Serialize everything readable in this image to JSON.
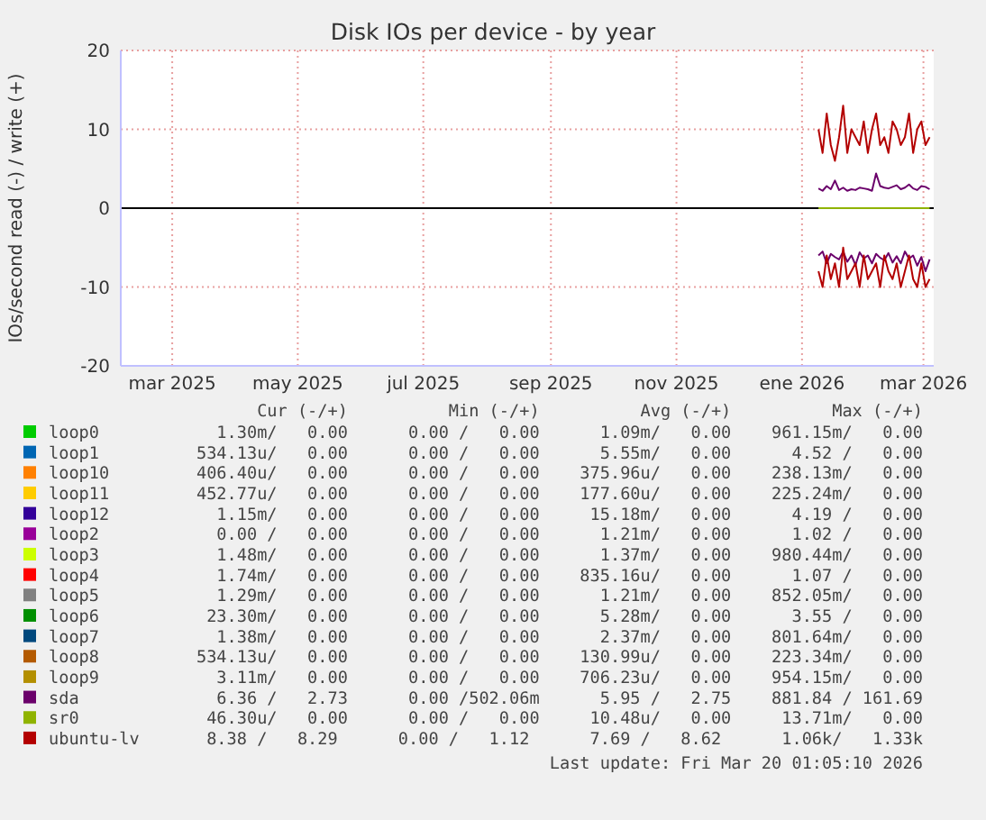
{
  "chart_data": {
    "type": "line",
    "title": "Disk IOs per device - by year",
    "ylabel": "IOs/second read (-) / write (+)",
    "xlim": [
      "2025-02-04",
      "2026-03-06"
    ],
    "ylim": [
      -20,
      20
    ],
    "yticks": [
      -20,
      -10,
      0,
      10,
      20
    ],
    "xticks": [
      {
        "value": "2025-03-01",
        "label": "mar 2025"
      },
      {
        "value": "2025-05-01",
        "label": "may 2025"
      },
      {
        "value": "2025-07-01",
        "label": "jul 2025"
      },
      {
        "value": "2025-09-01",
        "label": "sep 2025"
      },
      {
        "value": "2025-11-01",
        "label": "nov 2025"
      },
      {
        "value": "2026-01-01",
        "label": "ene 2026"
      },
      {
        "value": "2026-03-01",
        "label": "mar 2026"
      }
    ],
    "grid": true,
    "legend": "bottom",
    "line_style": "solid",
    "marker": "none",
    "ref_lines": [
      {
        "axis": "y",
        "value": 0,
        "color": "#000000"
      }
    ],
    "x": [
      "2026-01-09",
      "2026-01-11",
      "2026-01-13",
      "2026-01-15",
      "2026-01-17",
      "2026-01-19",
      "2026-01-21",
      "2026-01-23",
      "2026-01-25",
      "2026-01-27",
      "2026-01-29",
      "2026-01-31",
      "2026-02-02",
      "2026-02-04",
      "2026-02-06",
      "2026-02-08",
      "2026-02-10",
      "2026-02-12",
      "2026-02-14",
      "2026-02-16",
      "2026-02-18",
      "2026-02-20",
      "2026-02-22",
      "2026-02-24",
      "2026-02-26",
      "2026-02-28",
      "2026-03-02",
      "2026-03-04"
    ],
    "series": [
      {
        "name": "loop0",
        "color": "#00cc00",
        "values": [
          null,
          null,
          null,
          null,
          null,
          null,
          null,
          null,
          null,
          null,
          null,
          null,
          null,
          null,
          null,
          null,
          null,
          null,
          null,
          null,
          null,
          null,
          null,
          null,
          null,
          null,
          null,
          null
        ]
      },
      {
        "name": "loop1",
        "color": "#0066b3",
        "values": [
          null,
          null,
          null,
          null,
          null,
          null,
          null,
          null,
          null,
          null,
          null,
          null,
          null,
          null,
          null,
          null,
          null,
          null,
          null,
          null,
          null,
          null,
          null,
          null,
          null,
          null,
          null,
          null
        ]
      },
      {
        "name": "loop10",
        "color": "#ff8000",
        "values": [
          null,
          null,
          null,
          null,
          null,
          null,
          null,
          null,
          null,
          null,
          null,
          null,
          null,
          null,
          null,
          null,
          null,
          null,
          null,
          null,
          null,
          null,
          null,
          null,
          null,
          null,
          null,
          null
        ]
      },
      {
        "name": "loop11",
        "color": "#ffcc00",
        "values": [
          null,
          null,
          null,
          null,
          null,
          null,
          null,
          null,
          null,
          null,
          null,
          null,
          null,
          null,
          null,
          null,
          null,
          null,
          null,
          null,
          null,
          null,
          null,
          null,
          null,
          null,
          null,
          null
        ]
      },
      {
        "name": "loop12",
        "color": "#330099",
        "values": [
          null,
          null,
          null,
          null,
          null,
          null,
          null,
          null,
          null,
          null,
          null,
          null,
          null,
          null,
          null,
          null,
          null,
          null,
          null,
          null,
          null,
          null,
          null,
          null,
          null,
          null,
          null,
          null
        ]
      },
      {
        "name": "loop2",
        "color": "#990099",
        "values": [
          null,
          null,
          null,
          null,
          null,
          null,
          null,
          null,
          null,
          null,
          null,
          null,
          null,
          null,
          null,
          null,
          null,
          null,
          null,
          null,
          null,
          null,
          null,
          null,
          null,
          null,
          null,
          null
        ]
      },
      {
        "name": "loop3",
        "color": "#ccff00",
        "values": [
          null,
          null,
          null,
          null,
          null,
          null,
          null,
          null,
          null,
          null,
          null,
          null,
          null,
          null,
          null,
          null,
          null,
          null,
          null,
          null,
          null,
          null,
          null,
          null,
          null,
          null,
          null,
          null
        ]
      },
      {
        "name": "loop4",
        "color": "#ff0000",
        "values": [
          null,
          null,
          null,
          null,
          null,
          null,
          null,
          null,
          null,
          null,
          null,
          null,
          null,
          null,
          null,
          null,
          null,
          null,
          null,
          null,
          null,
          null,
          null,
          null,
          null,
          null,
          null,
          null
        ]
      },
      {
        "name": "loop5",
        "color": "#808080",
        "values": [
          null,
          null,
          null,
          null,
          null,
          null,
          null,
          null,
          null,
          null,
          null,
          null,
          null,
          null,
          null,
          null,
          null,
          null,
          null,
          null,
          null,
          null,
          null,
          null,
          null,
          null,
          null,
          null
        ]
      },
      {
        "name": "loop6",
        "color": "#008f00",
        "values": [
          null,
          null,
          null,
          null,
          null,
          null,
          null,
          null,
          null,
          null,
          null,
          null,
          null,
          null,
          null,
          null,
          null,
          null,
          null,
          null,
          null,
          null,
          null,
          null,
          null,
          null,
          null,
          null
        ]
      },
      {
        "name": "loop7",
        "color": "#00487d",
        "values": [
          null,
          null,
          null,
          null,
          null,
          null,
          null,
          null,
          null,
          null,
          null,
          null,
          null,
          null,
          null,
          null,
          null,
          null,
          null,
          null,
          null,
          null,
          null,
          null,
          null,
          null,
          null,
          null
        ]
      },
      {
        "name": "loop8",
        "color": "#b35a00",
        "values": [
          null,
          null,
          null,
          null,
          null,
          null,
          null,
          null,
          null,
          null,
          null,
          null,
          null,
          null,
          null,
          null,
          null,
          null,
          null,
          null,
          null,
          null,
          null,
          null,
          null,
          null,
          null,
          null
        ]
      },
      {
        "name": "loop9",
        "color": "#b38f00",
        "values": [
          null,
          null,
          null,
          null,
          null,
          null,
          null,
          null,
          null,
          null,
          null,
          null,
          null,
          null,
          null,
          null,
          null,
          null,
          null,
          null,
          null,
          null,
          null,
          null,
          null,
          null,
          null,
          null
        ]
      },
      {
        "name": "sda",
        "color": "#6b006b",
        "values": [
          2.5,
          2.2,
          2.8,
          2.4,
          3.5,
          2.3,
          2.6,
          2.2,
          2.4,
          2.3,
          2.6,
          2.5,
          2.4,
          2.2,
          4.4,
          2.8,
          2.6,
          2.5,
          2.7,
          2.9,
          2.4,
          2.6,
          3.0,
          2.5,
          2.3,
          2.8,
          2.7,
          2.4
        ]
      },
      {
        "name": "sr0",
        "color": "#8fb300",
        "values": [
          0,
          0,
          0,
          0,
          0,
          0,
          0,
          0,
          0,
          0,
          0,
          0,
          0,
          0,
          0,
          0,
          0,
          0,
          0,
          0,
          0,
          0,
          0,
          0,
          0,
          0,
          0,
          0
        ]
      },
      {
        "name": "ubuntu-lv",
        "color": "#b30000",
        "values": [
          10,
          7,
          12,
          8,
          6,
          9,
          13,
          7,
          10,
          9,
          8,
          11,
          7,
          10,
          12,
          8,
          9,
          7,
          11,
          10,
          8,
          9,
          12,
          7,
          10,
          11,
          8,
          9
        ]
      },
      {
        "color": "#6b006b",
        "values": [
          -6,
          -5.5,
          -7,
          -5.8,
          -6.2,
          -6.5,
          -5.5,
          -6.8,
          -6,
          -7.2,
          -5.6,
          -6.4,
          -6,
          -7,
          -5.8,
          -6.3,
          -6.6,
          -5.7,
          -6.9,
          -6.1,
          -7,
          -5.5,
          -6.4,
          -6,
          -7.3,
          -6.2,
          -8,
          -6.5
        ]
      },
      {
        "color": "#b30000",
        "values": [
          -8,
          -10,
          -6,
          -9,
          -7,
          -10,
          -5,
          -9,
          -8,
          -7,
          -10,
          -6,
          -9,
          -8,
          -7,
          -10,
          -6,
          -8,
          -9,
          -7,
          -10,
          -8,
          -6,
          -9,
          -10,
          -7,
          -10,
          -9
        ]
      }
    ],
    "annotations": [
      "       Cur (-/+)          Min (-/+)          Avg (-/+)          Max (-/+)",
      "   1.30m/   0.00      0.00 /   0.00      1.09m/   0.00    961.15m/   0.00",
      " 534.13u/   0.00      0.00 /   0.00      5.55m/   0.00      4.52 /   0.00",
      " 406.40u/   0.00      0.00 /   0.00    375.96u/   0.00    238.13m/   0.00",
      " 452.77u/   0.00      0.00 /   0.00    177.60u/   0.00    225.24m/   0.00",
      "   1.15m/   0.00      0.00 /   0.00     15.18m/   0.00      4.19 /   0.00",
      "   0.00 /   0.00      0.00 /   0.00      1.21m/   0.00      1.02 /   0.00",
      "   1.48m/   0.00      0.00 /   0.00      1.37m/   0.00    980.44m/   0.00",
      "   1.74m/   0.00      0.00 /   0.00    835.16u/   0.00      1.07 /   0.00",
      "   1.29m/   0.00      0.00 /   0.00      1.21m/   0.00    852.05m/   0.00",
      "  23.30m/   0.00      0.00 /   0.00      5.28m/   0.00      3.55 /   0.00",
      "   1.38m/   0.00      0.00 /   0.00      2.37m/   0.00    801.64m/   0.00",
      " 534.13u/   0.00      0.00 /   0.00    130.99u/   0.00    223.34m/   0.00",
      "   3.11m/   0.00      0.00 /   0.00    706.23u/   0.00    954.15m/   0.00",
      "   6.36 /   2.73      0.00 /502.06m      5.95 /   2.75    881.84 / 161.69",
      "  46.30u/   0.00      0.00 /   0.00     10.48u/   0.00     13.71m/   0.00",
      "   8.38 /   8.29      0.00 /   1.12      7.69 /   8.62      1.06k/   1.33k",
      "Last update: Fri Mar 20 01:05:10 2026"
    ]
  }
}
